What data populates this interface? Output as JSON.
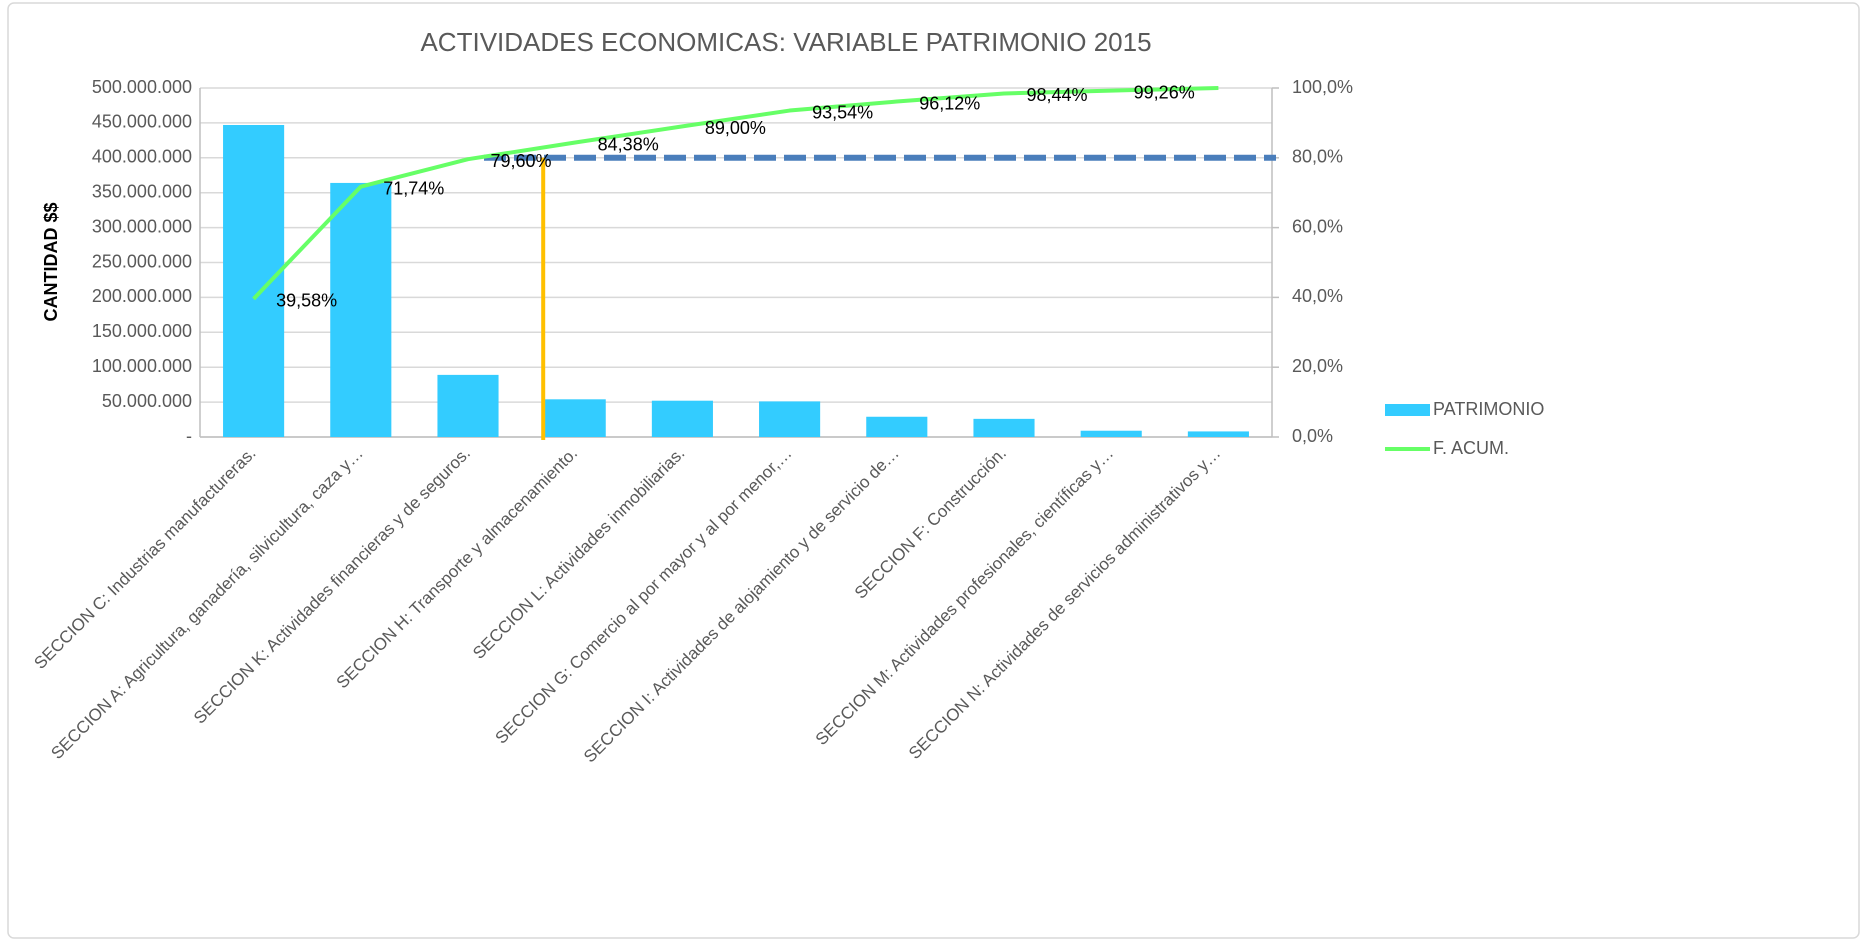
{
  "chart_data": {
    "type": "pareto",
    "title": "ACTIVIDADES ECONOMICAS: VARIABLE PATRIMONIO 2015",
    "y_label": "CANTIDAD $$",
    "categories": [
      "SECCION C: Industrias manufactureras.",
      "SECCION A: Agricultura, ganadería, silvicultura, caza y…",
      "SECCION K: Actividades financieras y de seguros.",
      "SECCION H: Transporte y almacenamiento.",
      "SECCION L: Actividades inmobiliarias.",
      "SECCION G: Comercio al por mayor y al por menor,…",
      "SECCION I: Actividades de alojamiento y de servicio de…",
      "SECCION F: Construcción.",
      "SECCION M: Actividades profesionales, científicas y…",
      "SECCION N: Actividades de servicios administrativos y…"
    ],
    "series": [
      {
        "name": "PATRIMONIO",
        "type": "bar",
        "color": "#33ccff",
        "values": [
          447000000,
          364000000,
          89000000,
          54000000,
          52000000,
          51000000,
          29000000,
          26000000,
          9000000,
          8000000
        ]
      },
      {
        "name": "F. ACUM.",
        "type": "line",
        "axis": "y2",
        "color": "#66ff66",
        "values": [
          39.58,
          71.74,
          79.6,
          84.38,
          89.0,
          93.54,
          96.12,
          98.44,
          99.26,
          100
        ],
        "value_labels": [
          "39,58%",
          "71,74%",
          "79,60%",
          "84,38%",
          "89,00%",
          "93,54%",
          "96,12%",
          "98,44%",
          "99,26%",
          null
        ]
      }
    ],
    "threshold": 80,
    "ylim": [
      0,
      500000000
    ],
    "yticks": [
      {
        "value": 0,
        "label": "-"
      },
      {
        "value": 50000000,
        "label": "50.000.000"
      },
      {
        "value": 100000000,
        "label": "100.000.000"
      },
      {
        "value": 150000000,
        "label": "150.000.000"
      },
      {
        "value": 200000000,
        "label": "200.000.000"
      },
      {
        "value": 250000000,
        "label": "250.000.000"
      },
      {
        "value": 300000000,
        "label": "300.000.000"
      },
      {
        "value": 350000000,
        "label": "350.000.000"
      },
      {
        "value": 400000000,
        "label": "400.000.000"
      },
      {
        "value": 450000000,
        "label": "450.000.000"
      },
      {
        "value": 500000000,
        "label": "500.000.000"
      }
    ],
    "y2lim": [
      0,
      100
    ],
    "y2ticks": [
      {
        "value": 0,
        "label": "0,0%"
      },
      {
        "value": 20,
        "label": "20,0%"
      },
      {
        "value": 40,
        "label": "40,0%"
      },
      {
        "value": 60,
        "label": "60,0%"
      },
      {
        "value": 80,
        "label": "80,0%"
      },
      {
        "value": 100,
        "label": "100,0%"
      }
    ],
    "grid": true,
    "legend": "right"
  }
}
